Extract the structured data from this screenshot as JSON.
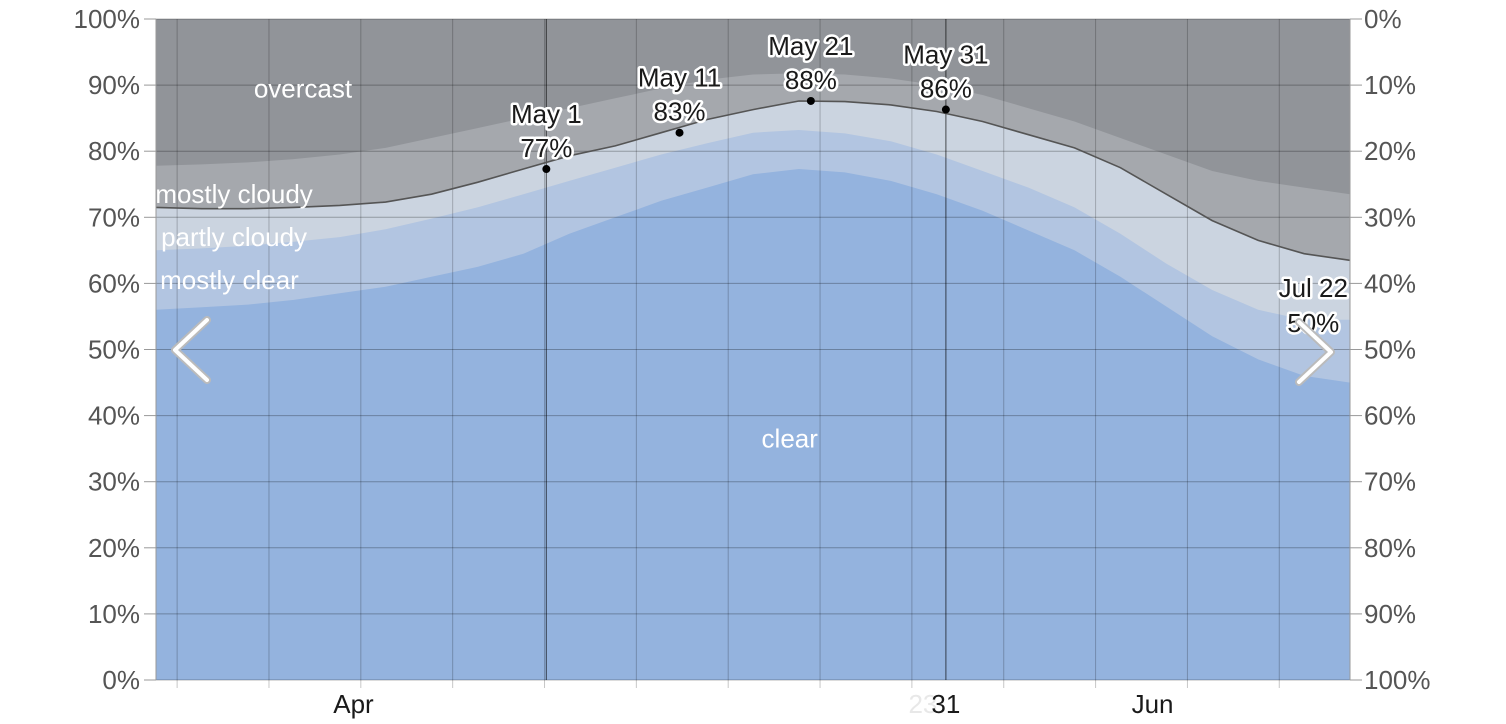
{
  "chart_data": {
    "type": "area",
    "x_days": [
      0,
      5,
      10,
      15,
      20,
      25,
      30,
      35,
      40,
      45,
      50,
      55,
      60,
      65,
      70,
      75,
      80,
      85,
      90,
      95,
      100,
      105,
      110,
      115,
      120,
      125,
      130
    ],
    "series": [
      {
        "name": "clear",
        "values": [
          56,
          56.4,
          56.8,
          57.5,
          58.5,
          59.5,
          61,
          62.5,
          64.5,
          67.5,
          70,
          72.5,
          74.5,
          76.5,
          77.3,
          76.8,
          75.5,
          73.5,
          71,
          68,
          65,
          61,
          56.5,
          52,
          48.5,
          46,
          45
        ],
        "color": "#94b3de"
      },
      {
        "name": "mostly clear",
        "values": [
          65,
          65.3,
          65.7,
          66.3,
          67,
          68.2,
          69.8,
          71.5,
          73.5,
          75.5,
          77.5,
          79.5,
          81.2,
          82.8,
          83.2,
          82.7,
          81.5,
          79.5,
          77,
          74.5,
          71.5,
          67.5,
          63,
          59,
          56,
          54.5,
          54.5
        ],
        "color": "#b2c5e1"
      },
      {
        "name": "partly cloudy",
        "values": [
          71.5,
          71.3,
          71.3,
          71.5,
          71.8,
          72.3,
          73.5,
          75.3,
          77.3,
          79.3,
          80.8,
          82.8,
          84.8,
          86.3,
          87.6,
          87.5,
          87,
          86,
          84.5,
          82.5,
          80.5,
          77.5,
          73.5,
          69.5,
          66.5,
          64.5,
          63.5
        ],
        "color": "#cbd4e0"
      },
      {
        "name": "mostly cloudy",
        "values": [
          77.8,
          78,
          78.3,
          78.8,
          79.5,
          80.5,
          82,
          83.5,
          85,
          86.5,
          88,
          89.5,
          90.8,
          91.6,
          91.8,
          91.6,
          91,
          90,
          88.5,
          86.5,
          84.5,
          82,
          79.5,
          77,
          75.5,
          74.5,
          73.5
        ],
        "color": "#a5a8ad"
      },
      {
        "name": "overcast",
        "values": [
          100,
          100,
          100,
          100,
          100,
          100,
          100,
          100,
          100,
          100,
          100,
          100,
          100,
          100,
          100,
          100,
          100,
          100,
          100,
          100,
          100,
          100,
          100,
          100,
          100,
          100,
          100
        ],
        "color": "#919499"
      }
    ],
    "line_values": [
      71.5,
      71.3,
      71.3,
      71.5,
      71.8,
      72.3,
      73.5,
      75.3,
      77.3,
      79.3,
      80.8,
      82.8,
      84.8,
      86.3,
      87.6,
      87.5,
      87,
      86,
      84.5,
      82.5,
      80.5,
      77.5,
      73.5,
      69.5,
      66.5,
      64.5,
      63.5
    ],
    "band_labels": [
      {
        "text": "overcast",
        "day": 16.0,
        "value": 89.5
      },
      {
        "text": "mostly cloudy",
        "day": 8.5,
        "value": 73.5
      },
      {
        "text": "partly cloudy",
        "day": 8.5,
        "value": 67.0
      },
      {
        "text": "mostly clear",
        "day": 8.0,
        "value": 60.5
      },
      {
        "text": "clear",
        "day": 69.0,
        "value": 36.5
      }
    ],
    "annotations": [
      {
        "date": "May 1",
        "value_label": "77%",
        "day": 42.5,
        "value": 77.3,
        "point": true
      },
      {
        "date": "May 11",
        "value_label": "83%",
        "day": 57.0,
        "value": 82.8,
        "point": true
      },
      {
        "date": "May 21",
        "value_label": "88%",
        "day": 71.3,
        "value": 87.6,
        "point": true
      },
      {
        "date": "May 31",
        "value_label": "86%",
        "day": 86.0,
        "value": 86.3,
        "point": true
      },
      {
        "date": "Jul 22",
        "value_label": "50%",
        "day": 126.0,
        "value": 50.0,
        "point": false
      }
    ],
    "x_ticks": [
      {
        "label": "Apr",
        "day": 21.5,
        "ghost": false
      },
      {
        "label": "23",
        "day": 83.5,
        "ghost": true
      },
      {
        "label": "31",
        "day": 86.0,
        "ghost": false
      },
      {
        "label": "Jun",
        "day": 108.5,
        "ghost": false
      }
    ],
    "vgrid_days": [
      2.3,
      12.3,
      22.3,
      32.3,
      42.3,
      52.3,
      62.3,
      72.3,
      82.3,
      92.3,
      102.3,
      112.3,
      122.3
    ],
    "dark_vlines_days": [
      42.5,
      86.0
    ],
    "y_left": {
      "labels": [
        "0%",
        "10%",
        "20%",
        "30%",
        "40%",
        "50%",
        "60%",
        "70%",
        "80%",
        "90%",
        "100%"
      ],
      "ylim": [
        0,
        100
      ]
    },
    "y_right": {
      "labels": [
        "100%",
        "90%",
        "80%",
        "70%",
        "60%",
        "50%",
        "40%",
        "30%",
        "20%",
        "10%",
        "0%"
      ]
    },
    "nav": {
      "prev": "chevron-left-icon",
      "next": "chevron-right-icon"
    },
    "grid": true,
    "line_color": "#555555"
  }
}
